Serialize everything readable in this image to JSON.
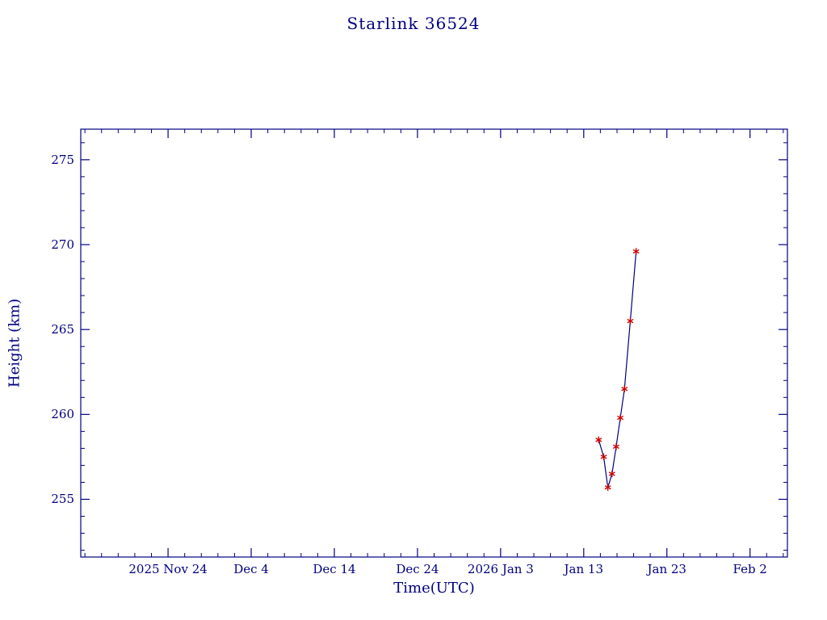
{
  "chart_data": {
    "type": "line",
    "title": "Starlink 36524",
    "xlabel": "Time(UTC)",
    "ylabel": "Height (km)",
    "x_tick_labels": [
      "2025 Nov 24",
      "Dec  4",
      "Dec 14",
      "Dec 24",
      "2026 Jan  3",
      "Jan 13",
      "Jan 23",
      "Feb  2"
    ],
    "x_tick_days": [
      0,
      10,
      20,
      30,
      40,
      50,
      60,
      70
    ],
    "x_minor_step_days": 2,
    "x_range_days": [
      -10.5,
      74.5
    ],
    "y_ticks": [
      255,
      260,
      265,
      270,
      275
    ],
    "y_minor_step": 1,
    "y_range": [
      251.6,
      276.8
    ],
    "grid": false,
    "legend": "none",
    "series": [
      {
        "name": "height",
        "x_days": [
          51.8,
          52.4,
          52.9,
          53.4,
          53.9,
          54.4,
          54.9,
          55.6,
          56.3
        ],
        "values": [
          258.5,
          257.5,
          255.7,
          256.5,
          258.1,
          259.8,
          261.5,
          265.5,
          269.6
        ]
      }
    ],
    "marker": "asterisk",
    "colors": {
      "axis": "#000080",
      "text": "#000080",
      "line": "#000080",
      "marker": "#cc0000",
      "background": "#ffffff"
    }
  }
}
